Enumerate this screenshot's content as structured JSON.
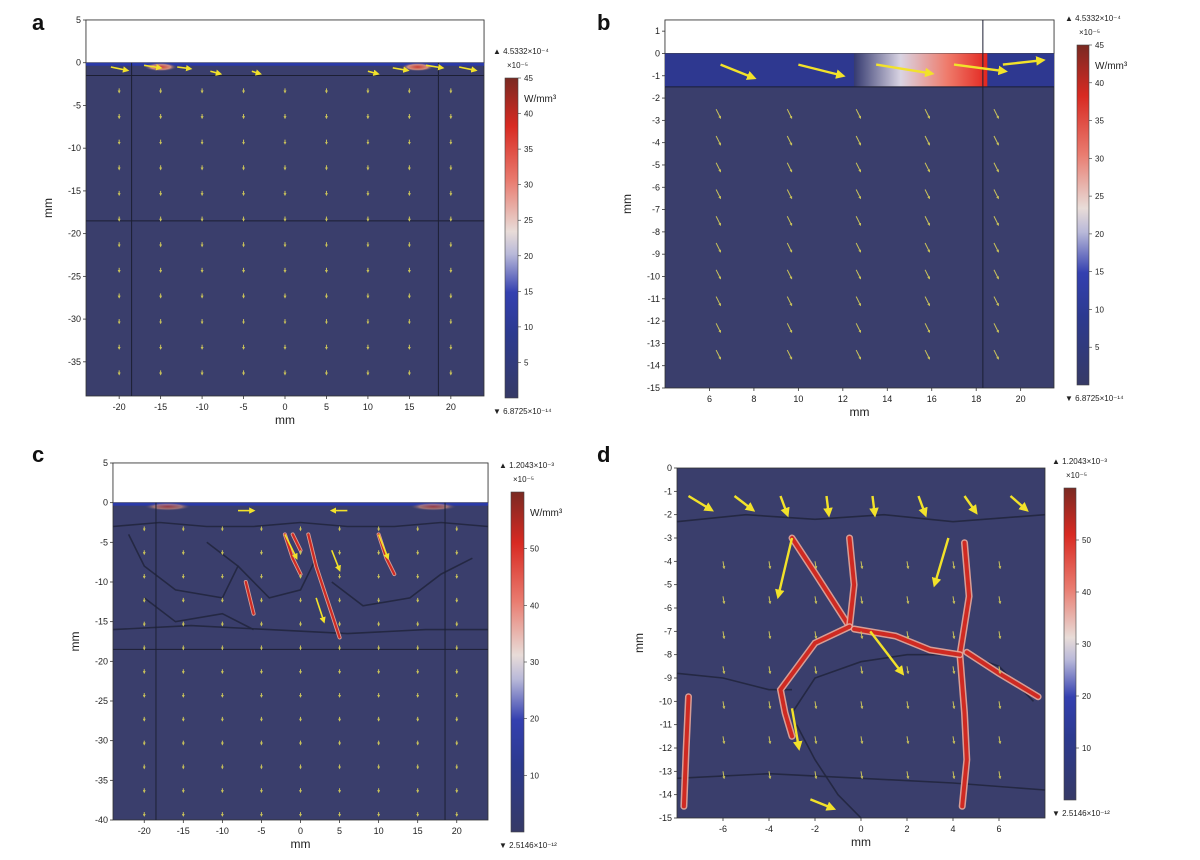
{
  "chart_data": [
    {
      "panel": "a",
      "type": "heatmap",
      "xlabel": "mm",
      "ylabel": "mm",
      "xlim": [
        -24,
        24
      ],
      "ylim": [
        -39,
        5
      ],
      "xticks": [
        -20,
        -15,
        -10,
        -5,
        0,
        5,
        10,
        15,
        20
      ],
      "xtick_labels": [
        "-20",
        "-15",
        "-10",
        "-5",
        "0",
        "5",
        "10",
        "15",
        "20"
      ],
      "yticks": [
        5,
        0,
        -5,
        -10,
        -15,
        -20,
        -25,
        -30,
        -35
      ],
      "ytick_labels": [
        "5",
        "0",
        "-5",
        "-10",
        "-15",
        "-20",
        "-25",
        "-30",
        "-35"
      ],
      "colorbar": {
        "max_label": "▲ 4.5332×10⁻⁴",
        "scale_label": "×10⁻⁵",
        "unit": "W/mm³",
        "ticks": [
          45,
          40,
          35,
          30,
          25,
          20,
          15,
          10,
          5
        ],
        "tick_labels": [
          "45",
          "40",
          "35",
          "30",
          "25",
          "20",
          "15",
          "10",
          "5"
        ],
        "range": [
          0,
          45
        ],
        "min_label": "▼ 6.8725×10⁻¹⁴"
      },
      "hotspots": [
        {
          "x": -15,
          "y": -0.5,
          "w": 4,
          "h": 1,
          "v": 0.85
        },
        {
          "x": 16,
          "y": -0.5,
          "w": 4,
          "h": 1,
          "v": 0.85
        }
      ],
      "arrows_strong": [
        [
          -21,
          -0.5,
          2,
          -0.4
        ],
        [
          -17,
          -0.3,
          2,
          -0.3
        ],
        [
          -13,
          -0.5,
          1.6,
          -0.2
        ],
        [
          -9,
          -1,
          1.2,
          -0.3
        ],
        [
          -4,
          -1,
          1,
          -0.3
        ],
        [
          10,
          -1,
          1.2,
          -0.3
        ],
        [
          13,
          -0.6,
          1.8,
          -0.3
        ],
        [
          17,
          -0.3,
          2,
          -0.3
        ],
        [
          21,
          -0.5,
          2,
          -0.4
        ]
      ],
      "arrows_weak": {
        "xs": [
          -20,
          -15,
          -10,
          -5,
          0,
          5,
          10,
          15,
          20
        ],
        "ys": [
          -3,
          -6,
          -9,
          -12,
          -15,
          -18,
          -21,
          -24,
          -27,
          -30,
          -33,
          -36
        ],
        "dx": 0,
        "dy": -0.5
      },
      "lines_h": [
        -1.5,
        -18.5
      ],
      "lines_v": [
        -18.5,
        18.5
      ]
    },
    {
      "panel": "b",
      "type": "heatmap",
      "xlabel": "mm",
      "ylabel": "mm",
      "xlim": [
        4,
        21.5
      ],
      "ylim": [
        -15,
        1.5
      ],
      "xticks": [
        6,
        8,
        10,
        12,
        14,
        16,
        18,
        20
      ],
      "xtick_labels": [
        "6",
        "8",
        "10",
        "12",
        "14",
        "16",
        "18",
        "20"
      ],
      "yticks": [
        1,
        0,
        -1,
        -2,
        -3,
        -4,
        -5,
        -6,
        -7,
        -8,
        -9,
        -10,
        -11,
        -12,
        -13,
        -14,
        -15
      ],
      "ytick_labels": [
        "1",
        "0",
        "-1",
        "-2",
        "-3",
        "-4",
        "-5",
        "-6",
        "-7",
        "-8",
        "-9",
        "-10",
        "-11",
        "-12",
        "-13",
        "-14",
        "-15"
      ],
      "colorbar": {
        "max_label": "▲ 4.5332×10⁻⁴",
        "scale_label": "×10⁻⁵",
        "unit": "W/mm³",
        "ticks": [
          45,
          40,
          35,
          30,
          25,
          20,
          15,
          10,
          5
        ],
        "tick_labels": [
          "45",
          "40",
          "35",
          "30",
          "25",
          "20",
          "15",
          "10",
          "5"
        ],
        "range": [
          0,
          45
        ],
        "min_label": "▼ 6.8725×10⁻¹⁴"
      },
      "gradient_band": {
        "x0": 12.5,
        "x1": 18.5,
        "y0": -1.5,
        "y1": 0
      },
      "arrows_strong": [
        [
          6.5,
          -0.5,
          1.5,
          -0.6
        ],
        [
          10,
          -0.5,
          2,
          -0.5
        ],
        [
          13.5,
          -0.5,
          2.5,
          -0.4
        ],
        [
          17,
          -0.5,
          2.3,
          -0.3
        ],
        [
          19.2,
          -0.5,
          1.8,
          0.2
        ]
      ],
      "arrows_weak": {
        "xs": [
          6.3,
          9.5,
          12.6,
          15.7,
          18.8
        ],
        "ys": [
          -2.5,
          -3.7,
          -4.9,
          -6.1,
          -7.3,
          -8.5,
          -9.7,
          -10.9,
          -12.1,
          -13.3
        ],
        "dx": 0.2,
        "dy": -0.4
      },
      "lines_h": [
        -1.5
      ],
      "lines_v": [
        18.3
      ]
    },
    {
      "panel": "c",
      "type": "heatmap",
      "xlabel": "mm",
      "ylabel": "mm",
      "xlim": [
        -24,
        24
      ],
      "ylim": [
        -40,
        5
      ],
      "xticks": [
        -20,
        -15,
        -10,
        -5,
        0,
        5,
        10,
        15,
        20
      ],
      "xtick_labels": [
        "-20",
        "-15",
        "-10",
        "-5",
        "0",
        "5",
        "10",
        "15",
        "20"
      ],
      "yticks": [
        5,
        0,
        -5,
        -10,
        -15,
        -20,
        -25,
        -30,
        -35,
        -40
      ],
      "ytick_labels": [
        "5",
        "0",
        "-5",
        "-10",
        "-15",
        "-20",
        "-25",
        "-30",
        "-35",
        "-40"
      ],
      "colorbar": {
        "max_label": "▲ 1.2043×10⁻³",
        "scale_label": "×10⁻⁵",
        "unit": "W/mm³",
        "ticks": [
          50,
          40,
          30,
          20,
          10
        ],
        "tick_labels": [
          "50",
          "40",
          "30",
          "20",
          "10"
        ],
        "range": [
          0,
          60
        ],
        "min_label": "▼ 2.5146×10⁻¹²"
      },
      "hotspots": [
        {
          "x": -17,
          "y": -0.5,
          "w": 6,
          "h": 1,
          "v": 0.55
        },
        {
          "x": 17,
          "y": -0.5,
          "w": 6,
          "h": 1,
          "v": 0.55
        }
      ],
      "veins": [
        [
          [
            -2,
            -4
          ],
          [
            -1,
            -7
          ],
          [
            0,
            -9
          ]
        ],
        [
          [
            1,
            -4
          ],
          [
            2,
            -8
          ],
          [
            3,
            -11
          ],
          [
            4,
            -14
          ],
          [
            5,
            -17
          ]
        ],
        [
          [
            10,
            -4
          ],
          [
            11,
            -7
          ],
          [
            12,
            -9
          ]
        ],
        [
          [
            -7,
            -10
          ],
          [
            -6,
            -14
          ]
        ],
        [
          [
            -1,
            -4
          ],
          [
            0,
            -6
          ]
        ]
      ],
      "grain_lines": [
        [
          [
            -24,
            -3
          ],
          [
            -18,
            -2.5
          ],
          [
            -12,
            -3
          ],
          [
            -6,
            -3
          ],
          [
            0,
            -2.5
          ],
          [
            6,
            -3
          ],
          [
            12,
            -3
          ],
          [
            18,
            -2.5
          ],
          [
            24,
            -3
          ]
        ],
        [
          [
            -24,
            -16
          ],
          [
            -14,
            -15.5
          ],
          [
            -4,
            -16
          ],
          [
            6,
            -16.5
          ],
          [
            16,
            -16
          ],
          [
            24,
            -16
          ]
        ],
        [
          [
            -22,
            -4
          ],
          [
            -20,
            -8
          ],
          [
            -16,
            -11
          ],
          [
            -10,
            -12
          ],
          [
            -8,
            -8
          ],
          [
            -12,
            -5
          ]
        ],
        [
          [
            -8,
            -8
          ],
          [
            -4,
            -12
          ],
          [
            0,
            -11
          ],
          [
            2,
            -7
          ]
        ],
        [
          [
            4,
            -10
          ],
          [
            8,
            -13
          ],
          [
            14,
            -12
          ],
          [
            18,
            -9
          ],
          [
            22,
            -7
          ]
        ],
        [
          [
            -20,
            -12
          ],
          [
            -16,
            -15
          ],
          [
            -10,
            -14
          ],
          [
            -6,
            -16
          ]
        ]
      ],
      "arrows_strong": [
        [
          -2,
          -4,
          1.5,
          -3
        ],
        [
          4,
          -6,
          1,
          -2.5
        ],
        [
          10,
          -4,
          1.2,
          -3
        ],
        [
          -8,
          -1,
          2,
          0
        ],
        [
          6,
          -1,
          -2,
          0
        ],
        [
          2,
          -12,
          1,
          -3
        ]
      ],
      "arrows_weak": {
        "xs": [
          -20,
          -15,
          -10,
          -5,
          0,
          5,
          10,
          15,
          20
        ],
        "ys": [
          -3,
          -6,
          -9,
          -12,
          -15,
          -18,
          -21,
          -24,
          -27,
          -30,
          -33,
          -36,
          -39
        ],
        "dx": 0,
        "dy": -0.5
      },
      "lines_h": [
        -18.5
      ],
      "lines_v": [
        -18.5,
        18.5
      ]
    },
    {
      "panel": "d",
      "type": "heatmap",
      "xlabel": "mm",
      "ylabel": "mm",
      "xlim": [
        -8,
        8
      ],
      "ylim": [
        -15,
        0
      ],
      "xticks": [
        -6,
        -4,
        -2,
        0,
        2,
        4,
        6
      ],
      "xtick_labels": [
        "-6",
        "-4",
        "-2",
        "0",
        "2",
        "4",
        "6"
      ],
      "yticks": [
        0,
        -1,
        -2,
        -3,
        -4,
        -5,
        -6,
        -7,
        -8,
        -9,
        -10,
        -11,
        -12,
        -13,
        -14,
        -15
      ],
      "ytick_labels": [
        "0",
        "-1",
        "-2",
        "-3",
        "-4",
        "-5",
        "-6",
        "-7",
        "-8",
        "-9",
        "-10",
        "-11",
        "-12",
        "-13",
        "-14",
        "-15"
      ],
      "colorbar": {
        "max_label": "▲ 1.2043×10⁻³",
        "scale_label": "×10⁻⁵",
        "unit": "",
        "ticks": [
          50,
          40,
          30,
          20,
          10
        ],
        "tick_labels": [
          "50",
          "40",
          "30",
          "20",
          "10"
        ],
        "range": [
          0,
          60
        ],
        "min_label": "▼ 2.5146×10⁻¹²"
      },
      "veins": [
        [
          [
            -3,
            -3
          ],
          [
            -2,
            -4.5
          ],
          [
            -0.5,
            -6.8
          ]
        ],
        [
          [
            -0.5,
            -3
          ],
          [
            -0.3,
            -5
          ],
          [
            -0.5,
            -6.8
          ]
        ],
        [
          [
            -0.5,
            -6.8
          ],
          [
            -2,
            -7.5
          ],
          [
            -3.5,
            -9.5
          ],
          [
            -3.3,
            -10.5
          ],
          [
            -3,
            -11.5
          ]
        ],
        [
          [
            4.5,
            -3.2
          ],
          [
            4.7,
            -5.5
          ],
          [
            4.3,
            -8
          ],
          [
            4.5,
            -10.5
          ],
          [
            4.6,
            -12.5
          ],
          [
            4.4,
            -14.5
          ]
        ],
        [
          [
            -7.5,
            -9.8
          ],
          [
            -7.6,
            -12
          ],
          [
            -7.7,
            -14.5
          ]
        ],
        [
          [
            -0.3,
            -6.9
          ],
          [
            1.5,
            -7.2
          ],
          [
            3,
            -7.8
          ],
          [
            4.3,
            -8
          ]
        ],
        [
          [
            4.6,
            -7.9
          ],
          [
            6,
            -8.8
          ],
          [
            7.7,
            -9.8
          ]
        ]
      ],
      "grain_lines": [
        [
          [
            -8,
            -2.3
          ],
          [
            -5,
            -2
          ],
          [
            -2,
            -2.2
          ],
          [
            1,
            -2
          ],
          [
            4,
            -2.3
          ],
          [
            8,
            -2
          ]
        ],
        [
          [
            -8,
            -8.8
          ],
          [
            -6,
            -9
          ],
          [
            -4,
            -9.5
          ],
          [
            -3,
            -9.5
          ]
        ],
        [
          [
            -3,
            -10.5
          ],
          [
            -2,
            -9
          ],
          [
            0,
            -8.3
          ],
          [
            2,
            -8
          ],
          [
            4,
            -8
          ]
        ],
        [
          [
            4.6,
            -8
          ],
          [
            6,
            -8.5
          ],
          [
            7.5,
            -10
          ]
        ],
        [
          [
            -8,
            -13.3
          ],
          [
            -4,
            -13.1
          ],
          [
            0,
            -13.3
          ],
          [
            4,
            -13.5
          ],
          [
            8,
            -13.8
          ]
        ],
        [
          [
            -2.8,
            -11
          ],
          [
            -2,
            -12.5
          ],
          [
            -1,
            -14
          ],
          [
            0,
            -15
          ]
        ]
      ],
      "arrows_strong": [
        [
          -7.5,
          -1.2,
          1,
          -0.6
        ],
        [
          -5.5,
          -1.2,
          0.8,
          -0.6
        ],
        [
          -3.5,
          -1.2,
          0.3,
          -0.8
        ],
        [
          -1.5,
          -1.2,
          0.1,
          -0.8
        ],
        [
          0.5,
          -1.2,
          0.1,
          -0.8
        ],
        [
          2.5,
          -1.2,
          0.3,
          -0.8
        ],
        [
          4.5,
          -1.2,
          0.5,
          -0.7
        ],
        [
          6.5,
          -1.2,
          0.7,
          -0.6
        ],
        [
          -3,
          -3,
          -0.6,
          -2.5
        ],
        [
          3.8,
          -3,
          -0.6,
          -2
        ],
        [
          0.4,
          -7,
          1.4,
          -1.8
        ],
        [
          -3,
          -10.3,
          0.3,
          -1.7
        ],
        [
          -2.2,
          -14.2,
          1,
          -0.4
        ]
      ],
      "arrows_weak": {
        "xs": [
          -6,
          -4,
          -2,
          0,
          2,
          4,
          6
        ],
        "ys": [
          -4,
          -5.5,
          -7,
          -8.5,
          -10,
          -11.5,
          -13
        ],
        "dx": 0.05,
        "dy": -0.3
      },
      "lines_h": [],
      "lines_v": []
    }
  ]
}
